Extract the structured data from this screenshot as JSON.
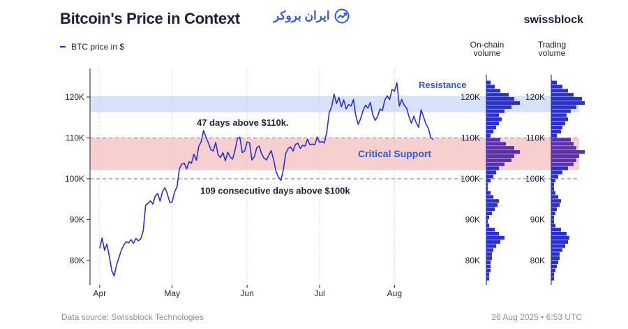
{
  "title": "Bitcoin's Price in Context",
  "watermark": "ایران بروکر",
  "brand": "swissblock",
  "legend": {
    "label": "BTC price in $"
  },
  "headers": {
    "onchain": [
      "On-chain",
      "volume"
    ],
    "trading": [
      "Trading",
      "volume"
    ]
  },
  "footer": {
    "source": "Data source: Swissblock Technologies",
    "timestamp": "26 Aug 2025 • 6:53 UTC"
  },
  "colors": {
    "line": "#2a2fd0",
    "resistance_band": "#d6e2f7",
    "support_band": "#f7cfcf",
    "dashed": "#7aa3dd",
    "bars": "#2a2fd0",
    "support_bars": "#5a2fb8",
    "annotation_blue": "#2f5bd3"
  },
  "chart_data": {
    "type": "line",
    "title": "Bitcoin's Price in Context",
    "xlabel": "",
    "ylabel": "BTC price in $",
    "ylim": [
      74000,
      127000
    ],
    "xlim": [
      -4,
      145
    ],
    "y_ticks": [
      80000,
      90000,
      100000,
      110000,
      120000
    ],
    "y_tick_labels": [
      "80K",
      "90K",
      "100K",
      "110K",
      "120K"
    ],
    "x_ticks": [
      0,
      30,
      61,
      91,
      122
    ],
    "x_tick_labels": [
      "Apr",
      "May",
      "Jun",
      "Jul",
      "Aug"
    ],
    "grid": "vertical-dotted",
    "bands": [
      {
        "name": "Resistance",
        "from": 116300,
        "to": 120300,
        "label": "Resistance"
      },
      {
        "name": "Critical Support",
        "from": 102200,
        "to": 110000,
        "label": "Critical Support"
      }
    ],
    "reference_lines": [
      110000,
      100000
    ],
    "annotations": [
      {
        "text": "47 days above $110k.",
        "x": 42,
        "y": 113800
      },
      {
        "text": "109 consecutive days above $100k",
        "x": 42,
        "y": 97200
      }
    ],
    "series": [
      {
        "name": "BTC price in $",
        "x": [
          0,
          1,
          2,
          3,
          4,
          5,
          6,
          7,
          8,
          9,
          10,
          11,
          12,
          13,
          14,
          15,
          16,
          17,
          18,
          19,
          20,
          21,
          22,
          23,
          24,
          25,
          26,
          27,
          28,
          29,
          30,
          31,
          32,
          33,
          34,
          35,
          36,
          37,
          38,
          39,
          40,
          41,
          42,
          43,
          44,
          45,
          46,
          47,
          48,
          49,
          50,
          51,
          52,
          53,
          54,
          55,
          56,
          57,
          58,
          59,
          60,
          61,
          62,
          63,
          64,
          65,
          66,
          67,
          68,
          69,
          70,
          71,
          72,
          73,
          74,
          75,
          76,
          77,
          78,
          79,
          80,
          81,
          82,
          83,
          84,
          85,
          86,
          87,
          88,
          89,
          90,
          91,
          92,
          93,
          94,
          95,
          96,
          97,
          98,
          99,
          100,
          101,
          102,
          103,
          104,
          105,
          106,
          107,
          108,
          109,
          110,
          111,
          112,
          113,
          114,
          115,
          116,
          117,
          118,
          119,
          120,
          121,
          122,
          123,
          124,
          125,
          126,
          127,
          128,
          129,
          130,
          131,
          132,
          133,
          134,
          135,
          136,
          137,
          138
        ],
        "values": [
          83000,
          85500,
          82500,
          84000,
          81000,
          77500,
          76200,
          79000,
          80800,
          82600,
          83800,
          84600,
          84300,
          85100,
          84200,
          85400,
          84800,
          85300,
          87200,
          93500,
          94000,
          94600,
          93800,
          95800,
          96400,
          94500,
          96900,
          97800,
          96300,
          94200,
          94300,
          96800,
          98000,
          102500,
          103600,
          103800,
          102400,
          104200,
          103800,
          106000,
          104500,
          107900,
          109100,
          111800,
          110200,
          108700,
          107100,
          106800,
          108900,
          105900,
          105200,
          106400,
          104400,
          106500,
          105300,
          104800,
          107000,
          109800,
          110200,
          106400,
          106800,
          109000,
          108800,
          104600,
          105400,
          107600,
          108000,
          106100,
          105100,
          104600,
          105800,
          106900,
          104600,
          101700,
          100400,
          99600,
          102200,
          106200,
          107400,
          107800,
          106800,
          108400,
          108700,
          107400,
          108200,
          108000,
          109700,
          108300,
          108500,
          108300,
          110200,
          108900,
          109100,
          108800,
          111500,
          116200,
          117600,
          120700,
          118400,
          119900,
          117600,
          119300,
          117100,
          118200,
          117800,
          119400,
          115400,
          113300,
          114800,
          116700,
          118000,
          117300,
          118700,
          115700,
          114300,
          115200,
          117100,
          116700,
          119300,
          120300,
          119400,
          121900,
          121400,
          123500,
          117800,
          119400,
          118000,
          117300,
          115200,
          113600,
          115300,
          113700,
          112600,
          116900,
          115200,
          113400,
          112400,
          110100,
          109600
        ]
      }
    ],
    "onchain_volume": {
      "bins": [
        75000,
        76000,
        77000,
        78000,
        79000,
        80000,
        81000,
        82000,
        83000,
        84000,
        85000,
        86000,
        87000,
        88000,
        89000,
        90000,
        91000,
        92000,
        93000,
        94000,
        95000,
        96000,
        97000,
        98000,
        99000,
        100000,
        101000,
        102000,
        103000,
        104000,
        105000,
        106000,
        107000,
        108000,
        109000,
        110000,
        111000,
        112000,
        113000,
        114000,
        115000,
        116000,
        117000,
        118000,
        119000,
        120000,
        121000,
        122000,
        123000
      ],
      "values": [
        2,
        2,
        3,
        3,
        3,
        4,
        4,
        5,
        7,
        10,
        13,
        9,
        6,
        2,
        1,
        2,
        4,
        6,
        8,
        9,
        5,
        3,
        1,
        1,
        3,
        5,
        7,
        9,
        13,
        18,
        20,
        24,
        20,
        14,
        10,
        3,
        5,
        7,
        9,
        11,
        9,
        13,
        18,
        24,
        20,
        16,
        10,
        6,
        3
      ]
    },
    "trading_volume": {
      "bins": [
        75000,
        76000,
        77000,
        78000,
        79000,
        80000,
        81000,
        82000,
        83000,
        84000,
        85000,
        86000,
        87000,
        88000,
        89000,
        90000,
        91000,
        92000,
        93000,
        94000,
        95000,
        96000,
        97000,
        98000,
        99000,
        100000,
        101000,
        102000,
        103000,
        104000,
        105000,
        106000,
        107000,
        108000,
        109000,
        110000,
        111000,
        112000,
        113000,
        114000,
        115000,
        116000,
        117000,
        118000,
        119000,
        120000,
        121000,
        122000,
        123000
      ],
      "values": [
        2,
        2,
        3,
        4,
        5,
        6,
        6,
        8,
        10,
        12,
        13,
        11,
        7,
        3,
        2,
        2,
        3,
        4,
        6,
        7,
        5,
        3,
        2,
        2,
        3,
        5,
        8,
        12,
        16,
        18,
        20,
        24,
        18,
        16,
        14,
        4,
        7,
        8,
        10,
        12,
        11,
        14,
        18,
        24,
        22,
        16,
        12,
        8,
        4
      ]
    }
  }
}
